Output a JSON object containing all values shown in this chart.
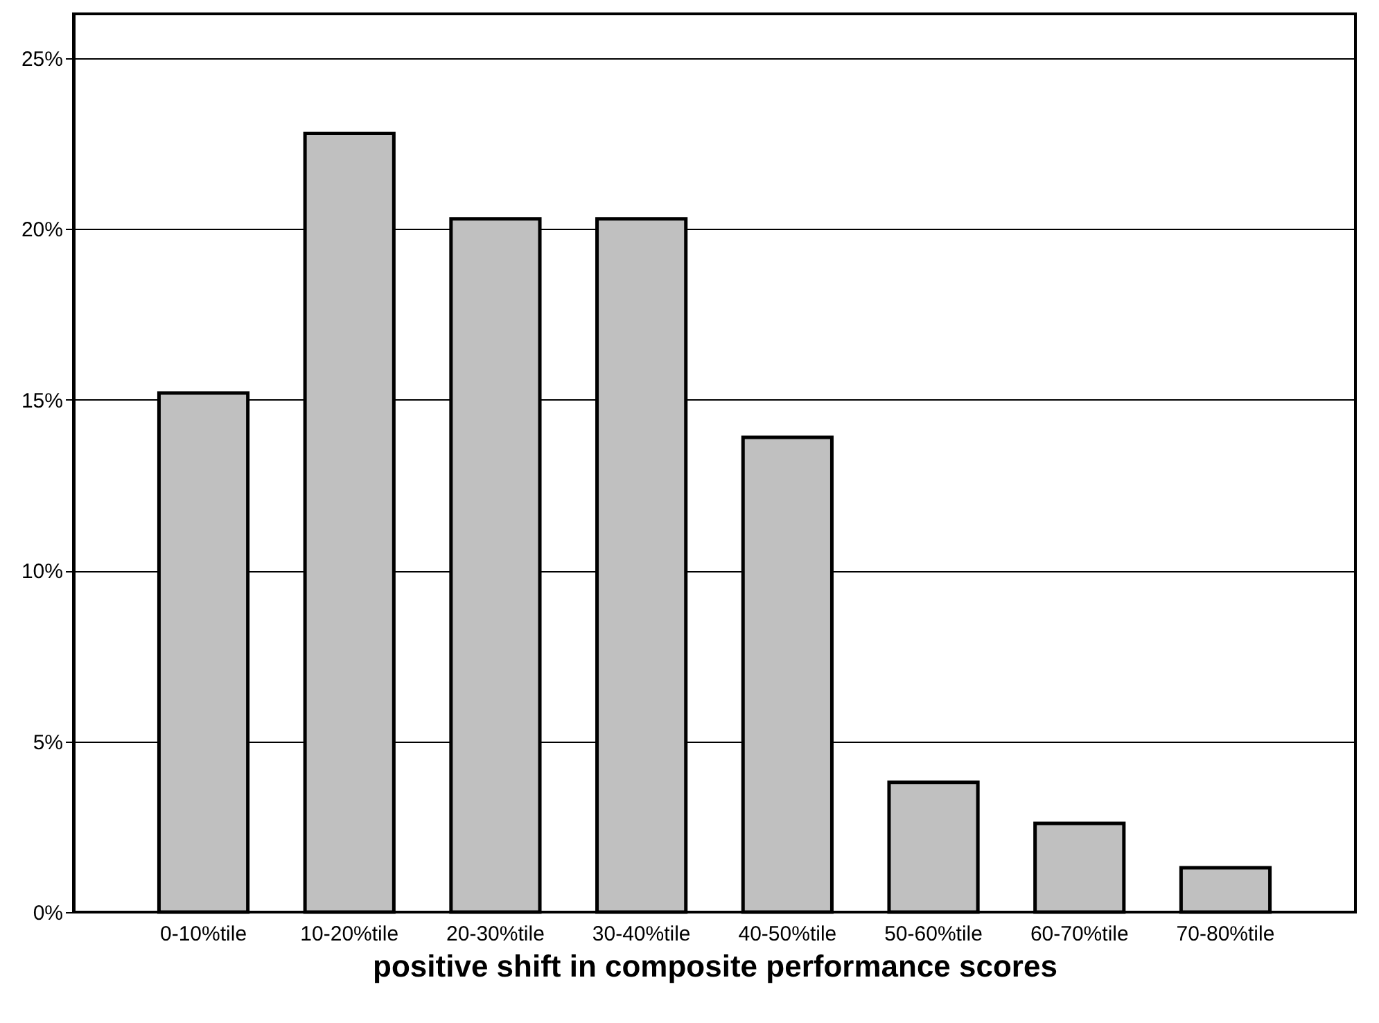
{
  "chart_data": {
    "type": "bar",
    "xlabel": "positive shift in composite performance scores",
    "categories": [
      "0-10%tile",
      "10-20%tile",
      "20-30%tile",
      "30-40%tile",
      "40-50%tile",
      "50-60%tile",
      "60-70%tile",
      "70-80%tile"
    ],
    "values": [
      15.2,
      22.8,
      20.3,
      20.3,
      13.9,
      3.8,
      2.6,
      1.3
    ],
    "color": "#c0c0c0",
    "ylim": [
      0,
      26.3
    ],
    "yticks": [
      {
        "value": 0,
        "label": "0%"
      },
      {
        "value": 5,
        "label": "5%"
      },
      {
        "value": 10,
        "label": "10%"
      },
      {
        "value": 15,
        "label": "15%"
      },
      {
        "value": 20,
        "label": "20%"
      },
      {
        "value": 25,
        "label": "25%"
      }
    ],
    "grid": "y"
  }
}
